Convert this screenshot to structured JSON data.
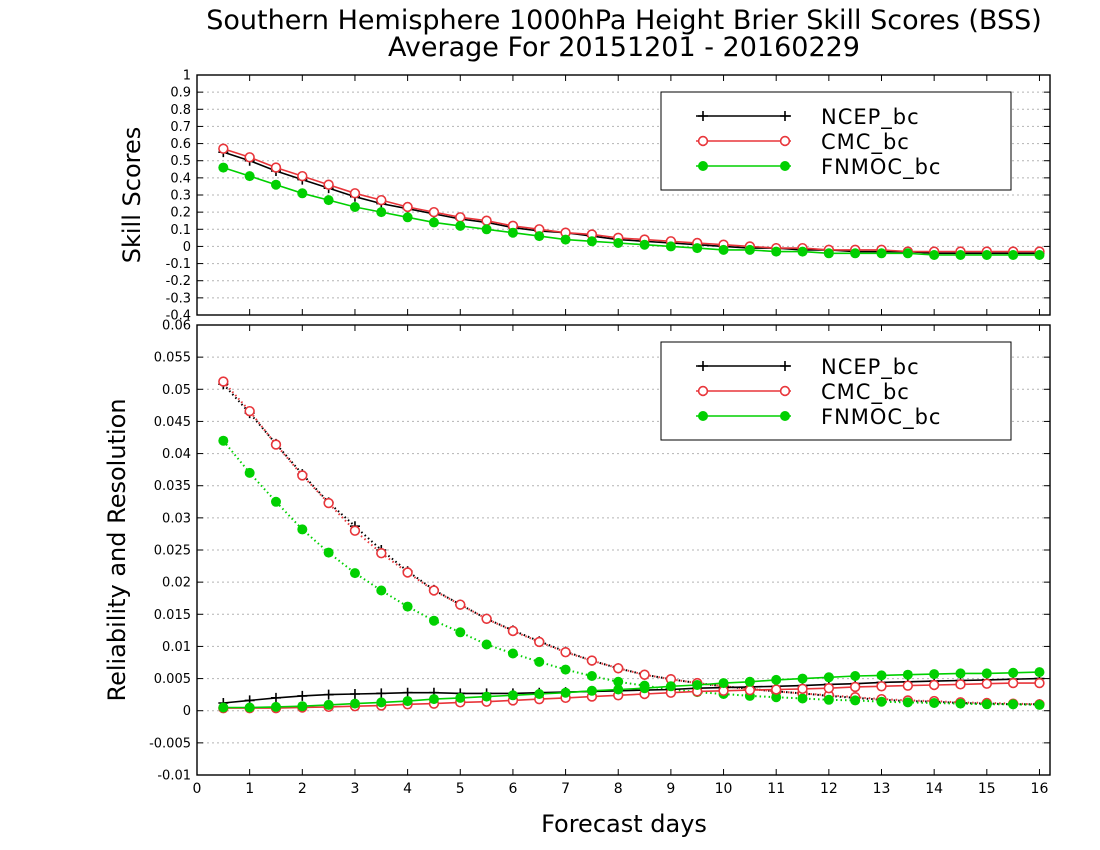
{
  "chart_data": [
    {
      "type": "line",
      "title": "Southern Hemisphere 1000hPa Height Brier Skill Scores (BSS)",
      "subtitle": "Average For 20151201 - 20160229",
      "xlabel": "",
      "ylabel": "Skill Scores",
      "xlim": [
        0,
        16.2
      ],
      "ylim": [
        -0.4,
        1
      ],
      "x_ticks": [
        0,
        1,
        2,
        3,
        4,
        5,
        6,
        7,
        8,
        9,
        10,
        11,
        12,
        13,
        14,
        15,
        16
      ],
      "y_ticks": [
        -0.4,
        -0.3,
        -0.2,
        -0.1,
        0,
        0.1,
        0.2,
        0.3,
        0.4,
        0.5,
        0.6,
        0.7,
        0.8,
        0.9,
        1
      ],
      "y_tick_labels": [
        "-0.4",
        "-0.3",
        "-0.2",
        "-0.1",
        "0",
        "0.1",
        "0.2",
        "0.3",
        "0.4",
        "0.5",
        "0.6",
        "0.7",
        "0.8",
        "0.9",
        "1"
      ],
      "grid": true,
      "legend_position": "top-right",
      "x": [
        0.5,
        1,
        1.5,
        2,
        2.5,
        3,
        3.5,
        4,
        4.5,
        5,
        5.5,
        6,
        6.5,
        7,
        7.5,
        8,
        8.5,
        9,
        9.5,
        10,
        10.5,
        11,
        11.5,
        12,
        12.5,
        13,
        13.5,
        14,
        14.5,
        15,
        15.5,
        16
      ],
      "series": [
        {
          "name": "NCEP_bc",
          "color": "#000000",
          "marker": "plus",
          "style": "solid",
          "values": [
            0.55,
            0.5,
            0.44,
            0.39,
            0.34,
            0.29,
            0.25,
            0.22,
            0.19,
            0.16,
            0.14,
            0.11,
            0.09,
            0.08,
            0.06,
            0.04,
            0.03,
            0.02,
            0.01,
            0.0,
            -0.01,
            -0.01,
            -0.02,
            -0.02,
            -0.03,
            -0.03,
            -0.03,
            -0.04,
            -0.04,
            -0.04,
            -0.04,
            -0.04
          ]
        },
        {
          "name": "CMC_bc",
          "color": "#e8353a",
          "marker": "open-circle",
          "style": "solid",
          "values": [
            0.57,
            0.52,
            0.46,
            0.41,
            0.36,
            0.31,
            0.27,
            0.23,
            0.2,
            0.17,
            0.15,
            0.12,
            0.1,
            0.08,
            0.07,
            0.05,
            0.04,
            0.03,
            0.02,
            0.01,
            0.0,
            -0.01,
            -0.01,
            -0.02,
            -0.02,
            -0.02,
            -0.03,
            -0.03,
            -0.03,
            -0.03,
            -0.03,
            -0.03
          ]
        },
        {
          "name": "FNMOC_bc",
          "color": "#00d000",
          "marker": "filled-circle",
          "style": "solid",
          "values": [
            0.46,
            0.41,
            0.36,
            0.31,
            0.27,
            0.23,
            0.2,
            0.17,
            0.14,
            0.12,
            0.1,
            0.08,
            0.06,
            0.04,
            0.03,
            0.02,
            0.01,
            0.0,
            -0.01,
            -0.02,
            -0.02,
            -0.03,
            -0.03,
            -0.04,
            -0.04,
            -0.04,
            -0.04,
            -0.05,
            -0.05,
            -0.05,
            -0.05,
            -0.05
          ]
        }
      ]
    },
    {
      "type": "line",
      "title": "",
      "xlabel": "Forecast days",
      "ylabel": "Reliability and Resolution",
      "xlim": [
        0,
        16.2
      ],
      "ylim": [
        -0.01,
        0.06
      ],
      "x_ticks": [
        0,
        1,
        2,
        3,
        4,
        5,
        6,
        7,
        8,
        9,
        10,
        11,
        12,
        13,
        14,
        15,
        16
      ],
      "x_tick_labels": [
        "0",
        "1",
        "2",
        "3",
        "4",
        "5",
        "6",
        "7",
        "8",
        "9",
        "10",
        "11",
        "12",
        "13",
        "14",
        "15",
        "16"
      ],
      "y_ticks": [
        -0.01,
        -0.005,
        0,
        0.005,
        0.01,
        0.015,
        0.02,
        0.025,
        0.03,
        0.035,
        0.04,
        0.045,
        0.05,
        0.055,
        0.06
      ],
      "y_tick_labels": [
        "-0.01",
        "-0.005",
        "0",
        "0.005",
        "0.01",
        "0.015",
        "0.02",
        "0.025",
        "0.03",
        "0.035",
        "0.04",
        "0.045",
        "0.05",
        "0.055",
        "0.06"
      ],
      "grid": true,
      "legend_position": "top-right",
      "x": [
        0.5,
        1,
        1.5,
        2,
        2.5,
        3,
        3.5,
        4,
        4.5,
        5,
        5.5,
        6,
        6.5,
        7,
        7.5,
        8,
        8.5,
        9,
        9.5,
        10,
        10.5,
        11,
        11.5,
        12,
        12.5,
        13,
        13.5,
        14,
        14.5,
        15,
        15.5,
        16
      ],
      "legend": [
        {
          "name": "NCEP_bc",
          "color": "#000000",
          "marker": "plus"
        },
        {
          "name": "CMC_bc",
          "color": "#e8353a",
          "marker": "open-circle"
        },
        {
          "name": "FNMOC_bc",
          "color": "#00d000",
          "marker": "filled-circle"
        }
      ],
      "series": [
        {
          "name": "NCEP_bc",
          "kind": "resolution",
          "color": "#000000",
          "marker": "plus",
          "style": "dotted",
          "values": [
            0.0508,
            0.0463,
            0.0415,
            0.0368,
            0.0324,
            0.0287,
            0.025,
            0.0217,
            0.0188,
            0.0165,
            0.0143,
            0.0125,
            0.0108,
            0.0092,
            0.0078,
            0.0066,
            0.0056,
            0.0049,
            0.0043,
            0.0038,
            0.0034,
            0.003,
            0.0027,
            0.0023,
            0.002,
            0.0017,
            0.0015,
            0.0014,
            0.0012,
            0.0011,
            0.001,
            0.001
          ]
        },
        {
          "name": "CMC_bc",
          "kind": "resolution",
          "color": "#e8353a",
          "marker": "open-circle",
          "style": "dotted",
          "values": [
            0.0512,
            0.0466,
            0.0414,
            0.0366,
            0.0323,
            0.028,
            0.0245,
            0.0215,
            0.0187,
            0.0165,
            0.0143,
            0.0124,
            0.0107,
            0.0091,
            0.0078,
            0.0066,
            0.0056,
            0.0049,
            0.0043,
            0.0038,
            0.0034,
            0.003,
            0.0027,
            0.0024,
            0.0021,
            0.0018,
            0.0016,
            0.0015,
            0.0013,
            0.0012,
            0.0011,
            0.001
          ]
        },
        {
          "name": "FNMOC_bc",
          "kind": "resolution",
          "color": "#00d000",
          "marker": "filled-circle",
          "style": "dotted",
          "values": [
            0.042,
            0.037,
            0.0325,
            0.0282,
            0.0246,
            0.0214,
            0.0187,
            0.0162,
            0.014,
            0.0122,
            0.0103,
            0.0089,
            0.0076,
            0.0064,
            0.0054,
            0.0045,
            0.0039,
            0.0033,
            0.0029,
            0.0026,
            0.0023,
            0.0021,
            0.0019,
            0.0017,
            0.0016,
            0.0014,
            0.0013,
            0.0012,
            0.0011,
            0.001,
            0.001,
            0.0009
          ]
        },
        {
          "name": "NCEP_bc",
          "kind": "reliability",
          "color": "#000000",
          "marker": "plus",
          "style": "solid",
          "values": [
            0.0012,
            0.0016,
            0.002,
            0.0023,
            0.0025,
            0.0026,
            0.0027,
            0.0028,
            0.0028,
            0.0027,
            0.0027,
            0.0027,
            0.0028,
            0.0029,
            0.003,
            0.0031,
            0.0032,
            0.0033,
            0.0035,
            0.0036,
            0.0037,
            0.0038,
            0.0039,
            0.0041,
            0.0042,
            0.0044,
            0.0045,
            0.0046,
            0.0047,
            0.0048,
            0.0049,
            0.005
          ]
        },
        {
          "name": "CMC_bc",
          "kind": "reliability",
          "color": "#e8353a",
          "marker": "open-circle",
          "style": "solid",
          "values": [
            0.0004,
            0.0004,
            0.0004,
            0.0005,
            0.0006,
            0.0007,
            0.0008,
            0.001,
            0.0011,
            0.0013,
            0.0014,
            0.0016,
            0.0018,
            0.002,
            0.0022,
            0.0024,
            0.0026,
            0.0028,
            0.003,
            0.0031,
            0.0032,
            0.0033,
            0.0034,
            0.0035,
            0.0037,
            0.0038,
            0.0039,
            0.004,
            0.0041,
            0.0042,
            0.0043,
            0.0043
          ]
        },
        {
          "name": "FNMOC_bc",
          "kind": "reliability",
          "color": "#00d000",
          "marker": "filled-circle",
          "style": "solid",
          "values": [
            0.0005,
            0.0005,
            0.0006,
            0.0007,
            0.0009,
            0.0011,
            0.0013,
            0.0015,
            0.0018,
            0.002,
            0.0022,
            0.0024,
            0.0026,
            0.0028,
            0.0031,
            0.0033,
            0.0035,
            0.0038,
            0.004,
            0.0043,
            0.0045,
            0.0048,
            0.005,
            0.0052,
            0.0054,
            0.0055,
            0.0056,
            0.0057,
            0.0058,
            0.0058,
            0.0059,
            0.006
          ]
        }
      ]
    }
  ]
}
